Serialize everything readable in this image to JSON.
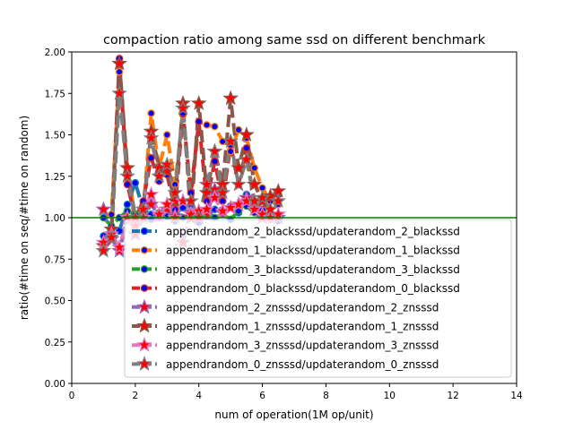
{
  "chart_data": {
    "type": "line",
    "title": "compaction ratio among same ssd on different benchmark",
    "xlabel": "num of operation(1M op/unit)",
    "ylabel": "ratio(#time on seq/#time on random)",
    "xlim": [
      0,
      14
    ],
    "ylim": [
      0,
      2.0
    ],
    "xticks": [
      0,
      2,
      4,
      6,
      8,
      10,
      12,
      14
    ],
    "xtick_labels": [
      "0",
      "2",
      "4",
      "6",
      "8",
      "10",
      "12",
      "14"
    ],
    "yticks": [
      0,
      0.25,
      0.5,
      0.75,
      1.0,
      1.25,
      1.5,
      1.75,
      2.0
    ],
    "ytick_labels": [
      "0.00",
      "0.25",
      "0.50",
      "0.75",
      "1.00",
      "1.25",
      "1.50",
      "1.75",
      "2.00"
    ],
    "grid": false,
    "legend_position": "lower-center",
    "reference_line": {
      "y": 1.0,
      "color": "#008000"
    },
    "x": [
      1.0,
      1.25,
      1.5,
      1.75,
      2.0,
      2.25,
      2.5,
      2.75,
      3.0,
      3.25,
      3.5,
      3.75,
      4.0,
      4.25,
      4.5,
      4.75,
      5.0,
      5.25,
      5.5,
      5.75,
      6.0,
      6.25,
      6.5
    ],
    "series": [
      {
        "name": "appendrandom_2_blackssd/updaterandom_2_blackssd",
        "color": "#1f77b4",
        "marker": "circle",
        "values": [
          0.89,
          0.93,
          0.92,
          1.08,
          1.21,
          1.05,
          1.02,
          1.0,
          1.01,
          1.02,
          1.06,
          1.08,
          1.0,
          1.01,
          1.05,
          1.03,
          1.07,
          1.03,
          1.14,
          1.06,
          1.04,
          1.0,
          0.98
        ]
      },
      {
        "name": "appendrandom_1_blackssd/updaterandom_1_blackssd",
        "color": "#ff7f0e",
        "marker": "circle",
        "values": [
          1.0,
          1.02,
          1.88,
          1.3,
          1.0,
          1.05,
          1.63,
          1.3,
          1.5,
          1.2,
          1.62,
          1.1,
          1.58,
          1.56,
          1.55,
          1.46,
          1.4,
          1.53,
          1.48,
          1.3,
          1.18,
          1.1,
          1.08
        ]
      },
      {
        "name": "appendrandom_3_blackssd/updaterandom_3_blackssd",
        "color": "#2ca02c",
        "marker": "circle",
        "values": [
          1.0,
          0.95,
          1.0,
          1.04,
          1.02,
          1.0,
          0.99,
          1.03,
          1.02,
          0.98,
          1.0,
          1.02,
          0.97,
          1.04,
          1.0,
          1.02,
          0.99,
          1.04,
          1.07,
          1.03,
          1.0,
          0.99,
          1.0
        ]
      },
      {
        "name": "appendrandom_0_blackssd/updaterandom_0_blackssd",
        "color": "#d62728",
        "marker": "circle",
        "values": [
          0.82,
          0.9,
          1.96,
          1.2,
          1.0,
          1.1,
          1.36,
          1.22,
          1.26,
          1.05,
          1.63,
          1.15,
          1.58,
          1.1,
          1.34,
          1.1,
          1.44,
          1.2,
          1.42,
          1.05,
          1.05,
          1.12,
          1.14
        ]
      },
      {
        "name": "appendrandom_2_znsssd/updaterandom_2_znsssd",
        "color": "#9467bd",
        "marker": "star",
        "values": [
          1.05,
          0.87,
          0.8,
          1.0,
          0.9,
          1.0,
          1.08,
          1.01,
          1.05,
          1.01,
          0.85,
          1.03,
          1.0,
          1.02,
          1.17,
          1.03,
          1.06,
          1.08,
          1.12,
          1.05,
          1.0,
          1.0,
          1.0
        ]
      },
      {
        "name": "appendrandom_1_znsssd/updaterandom_1_znsssd",
        "color": "#8c564b",
        "marker": "star",
        "values": [
          0.83,
          0.93,
          1.93,
          1.3,
          1.0,
          1.05,
          1.52,
          1.3,
          1.28,
          1.1,
          1.69,
          1.0,
          1.69,
          1.15,
          1.4,
          1.2,
          1.72,
          1.3,
          1.5,
          1.2,
          1.1,
          1.13,
          1.16
        ]
      },
      {
        "name": "appendrandom_3_znsssd/updaterandom_3_znsssd",
        "color": "#e377c2",
        "marker": "star",
        "values": [
          0.85,
          0.9,
          0.82,
          1.0,
          0.95,
          1.0,
          1.14,
          1.02,
          1.08,
          1.0,
          1.1,
          1.02,
          1.04,
          1.05,
          1.12,
          1.04,
          1.06,
          1.08,
          1.1,
          1.05,
          1.02,
          1.0,
          1.02
        ]
      },
      {
        "name": "appendrandom_0_znsssd/updaterandom_0_znsssd",
        "color": "#7f7f7f",
        "marker": "star",
        "values": [
          0.8,
          0.88,
          1.75,
          1.25,
          1.0,
          1.05,
          1.48,
          1.25,
          1.32,
          1.15,
          1.66,
          1.1,
          1.0,
          1.2,
          1.4,
          1.15,
          1.46,
          1.2,
          1.35,
          1.1,
          1.12,
          1.05,
          1.1
        ]
      }
    ]
  }
}
